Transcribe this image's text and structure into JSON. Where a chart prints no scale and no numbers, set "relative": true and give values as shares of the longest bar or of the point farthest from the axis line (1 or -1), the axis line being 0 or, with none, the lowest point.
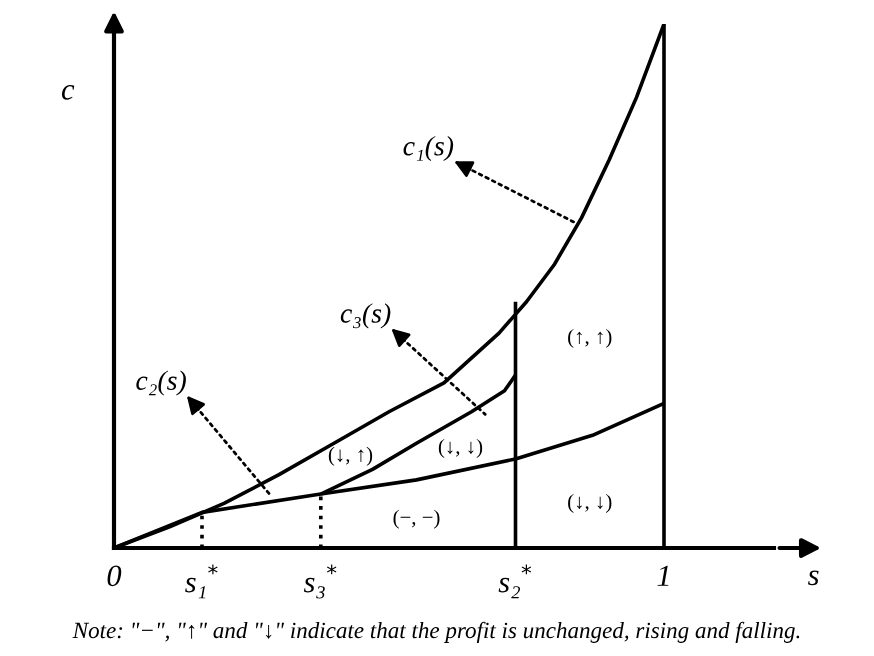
{
  "chart_data": {
    "type": "line",
    "relative": true,
    "xlabel": "s",
    "ylabel": "c",
    "xlim": [
      0,
      1.2
    ],
    "xticks": [
      0,
      {
        "value": 0.16,
        "label": "s₁$^{*}$"
      },
      {
        "value": 0.376,
        "label": "s₃$^{*}$"
      },
      {
        "value": 0.73,
        "label": "s₂$^{*}$"
      },
      1
    ],
    "series": [
      {
        "x": [
          0,
          0.1,
          0.2,
          0.3,
          0.4,
          0.5,
          0.6,
          0.7,
          0.75,
          0.8,
          0.85,
          0.9,
          0.95,
          1.0
        ],
        "values": [
          0,
          0.04,
          0.085,
          0.14,
          0.2,
          0.26,
          0.315,
          0.41,
          0.47,
          0.54,
          0.63,
          0.74,
          0.86,
          1.0
        ],
        "color": "#000000"
      },
      {
        "x": [
          0,
          0.16,
          0.376,
          0.55,
          0.73,
          0.87,
          1.0
        ],
        "values": [
          0,
          0.068,
          0.103,
          0.13,
          0.17,
          0.215,
          0.276
        ],
        "color": "#000000"
      },
      {
        "x": [
          0.376,
          0.47,
          0.55,
          0.65,
          0.71,
          0.73
        ],
        "values": [
          0.103,
          0.15,
          0.2,
          0.26,
          0.3,
          0.33
        ],
        "color": "#000000"
      },
      {
        "x": [
          0.16,
          0.16
        ],
        "values": [
          0,
          0.068
        ],
        "color": "#000000",
        "line_style": "dotted"
      },
      {
        "x": [
          0.376,
          0.376
        ],
        "values": [
          0,
          0.103
        ],
        "color": "#000000",
        "line_style": "dotted"
      },
      {
        "x": [
          0.73,
          0.73
        ],
        "values": [
          0,
          0.47
        ],
        "color": "#000000"
      }
    ],
    "ref_lines": [
      {
        "axis": "x",
        "value": 1,
        "color": "#000000"
      }
    ],
    "annotations": [
      {
        "text": "c₁(s)",
        "x": 0.84,
        "y": 0.62
      },
      {
        "text": "c₃(s)",
        "x": 0.675,
        "y": 0.255
      },
      {
        "text": "c₂(s)",
        "x": 0.285,
        "y": 0.1
      },
      "(↑, ↑)",
      "(↓, ↑)",
      "(↓, ↓)",
      "(−, −)",
      "(↓, ↓)",
      "Note: \"−\", \"↑\" and \"↓\" indicate that the profit is unchanged, rising and falling."
    ]
  }
}
